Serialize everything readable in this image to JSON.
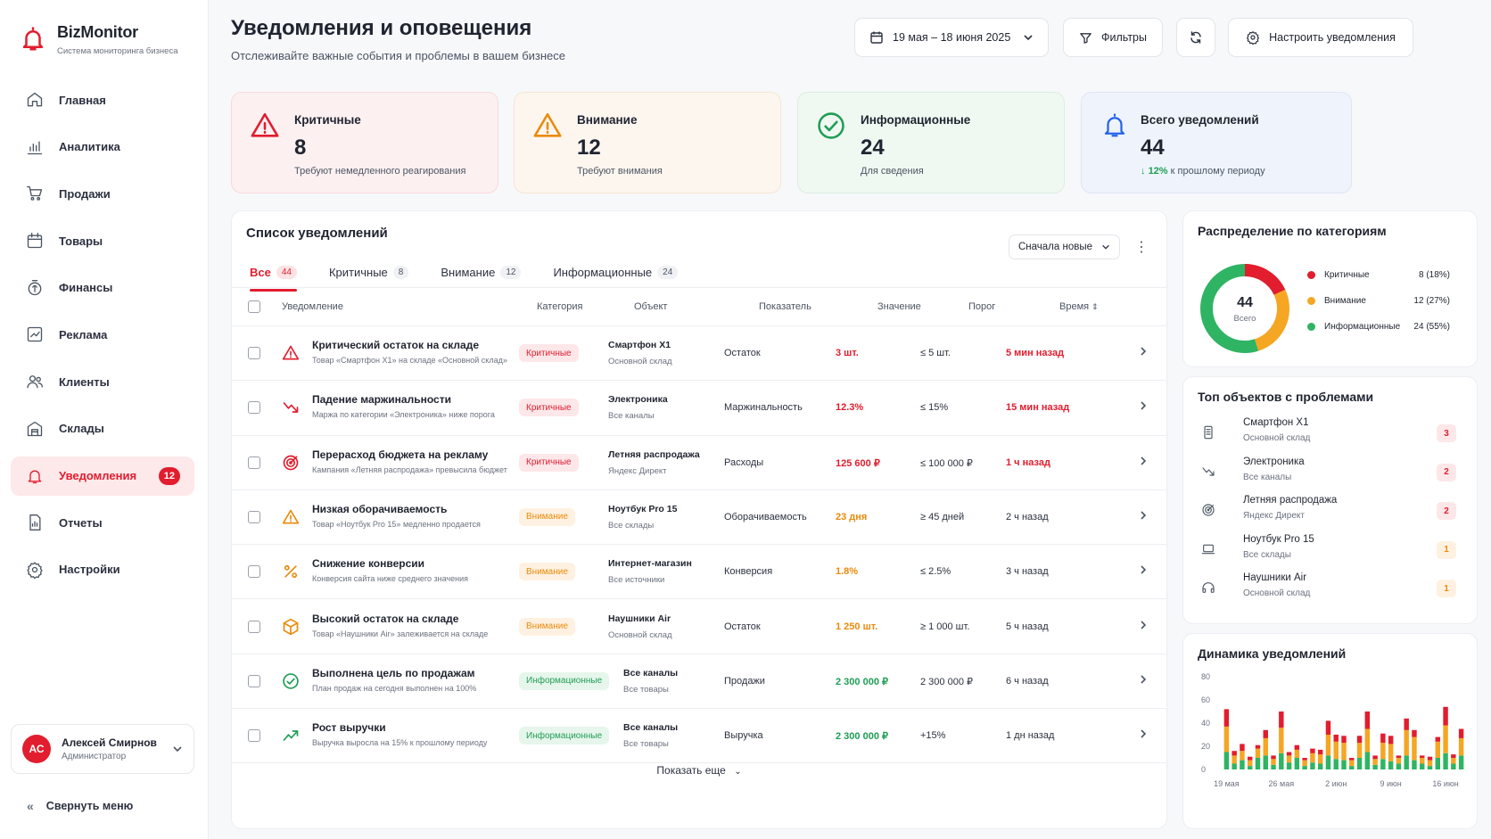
{
  "brand": {
    "name": "BizMonitor",
    "subtitle": "Система мониторинга бизнеса"
  },
  "nav": [
    {
      "label": "Главная",
      "icon": "home-icon"
    },
    {
      "label": "Аналитика",
      "icon": "analytics-icon"
    },
    {
      "label": "Продажи",
      "icon": "cart-icon"
    },
    {
      "label": "Товары",
      "icon": "box-icon"
    },
    {
      "label": "Финансы",
      "icon": "finance-icon"
    },
    {
      "label": "Реклама",
      "icon": "ads-icon"
    },
    {
      "label": "Клиенты",
      "icon": "users-icon"
    },
    {
      "label": "Склады",
      "icon": "warehouse-icon"
    },
    {
      "label": "Уведомления",
      "icon": "bell-icon",
      "badge": "12",
      "active": true
    },
    {
      "label": "Отчеты",
      "icon": "report-icon"
    },
    {
      "label": "Настройки",
      "icon": "settings-icon"
    }
  ],
  "user": {
    "initials": "АС",
    "name": "Алексей Смирнов",
    "role": "Администратор"
  },
  "collapse_label": "Свернуть меню",
  "header": {
    "title": "Уведомления и оповещения",
    "subtitle": "Отслеживайте важные события и проблемы в вашем бизнесе",
    "date_range": "19 мая – 18 июня 2025",
    "filters_label": "Фильтры",
    "settings_label": "Настроить уведомления"
  },
  "stats": [
    {
      "title": "Критичные",
      "value": "8",
      "sub": "Требуют немедленного реагирования",
      "color": "#e11d2e"
    },
    {
      "title": "Внимание",
      "value": "12",
      "sub": "Требуют внимания",
      "color": "#ea8a0a"
    },
    {
      "title": "Информационные",
      "value": "24",
      "sub": "Для сведения",
      "color": "#1f9d55"
    },
    {
      "title": "Всего уведомлений",
      "value": "44",
      "sub_pct": "12%",
      "sub": "к прошлому периоду",
      "color": "#2563eb"
    }
  ],
  "list": {
    "title": "Список уведомлений",
    "sort_label": "Сначала новые",
    "tabs": [
      {
        "label": "Все",
        "count": "44"
      },
      {
        "label": "Критичные",
        "count": "8"
      },
      {
        "label": "Внимание",
        "count": "12"
      },
      {
        "label": "Информационные",
        "count": "24"
      }
    ],
    "columns": [
      "Уведомление",
      "Категория",
      "Объект",
      "Показатель",
      "Значение",
      "Порог",
      "Время"
    ],
    "rows": [
      {
        "level": "crit",
        "icon": "warning-icon",
        "title": "Критический остаток на складе",
        "desc": "Товар «Смартфон X1» на складе «Основной склад»",
        "category": "Критичные",
        "object": "Смартфон X1",
        "object_sub": "Основной склад",
        "metric": "Остаток",
        "value": "3 шт.",
        "threshold": "≤ 5 шт.",
        "time": "5 мин назад",
        "time_hl": true
      },
      {
        "level": "crit",
        "icon": "trend-down-icon",
        "title": "Падение маржинальности",
        "desc": "Маржа по категории «Электроника» ниже порога",
        "category": "Критичные",
        "object": "Электроника",
        "object_sub": "Все каналы",
        "metric": "Маржинальность",
        "value": "12.3%",
        "threshold": "≤ 15%",
        "time": "15 мин назад",
        "time_hl": true
      },
      {
        "level": "crit",
        "icon": "target-icon",
        "title": "Перерасход бюджета на рекламу",
        "desc": "Кампания «Летняя распродажа» превысила бюджет",
        "category": "Критичные",
        "object": "Летняя распродажа",
        "object_sub": "Яндекс Директ",
        "metric": "Расходы",
        "value": "125 600 ₽",
        "threshold": "≤ 100 000 ₽",
        "time": "1 ч назад",
        "time_hl": true
      },
      {
        "level": "warn",
        "icon": "warning-icon",
        "title": "Низкая оборачиваемость",
        "desc": "Товар «Ноутбук Pro 15» медленно продается",
        "category": "Внимание",
        "object": "Ноутбук Pro 15",
        "object_sub": "Все склады",
        "metric": "Оборачиваемость",
        "value": "23 дня",
        "threshold": "≥ 45 дней",
        "time": "2 ч назад",
        "time_hl": false
      },
      {
        "level": "warn",
        "icon": "percent-icon",
        "title": "Снижение конверсии",
        "desc": "Конверсия сайта ниже среднего значения",
        "category": "Внимание",
        "object": "Интернет-магазин",
        "object_sub": "Все источники",
        "metric": "Конверсия",
        "value": "1.8%",
        "threshold": "≤ 2.5%",
        "time": "3 ч назад",
        "time_hl": false
      },
      {
        "level": "warn",
        "icon": "cube-icon",
        "title": "Высокий остаток на складе",
        "desc": "Товар «Наушники Air» залеживается на складе",
        "category": "Внимание",
        "object": "Наушники Air",
        "object_sub": "Основной склад",
        "metric": "Остаток",
        "value": "1 250 шт.",
        "threshold": "≥ 1 000 шт.",
        "time": "5 ч назад",
        "time_hl": false
      },
      {
        "level": "info",
        "icon": "check-circle-icon",
        "title": "Выполнена цель по продажам",
        "desc": "План продаж на сегодня выполнен на 100%",
        "category": "Информационные",
        "object": "Все каналы",
        "object_sub": "Все товары",
        "metric": "Продажи",
        "value": "2 300 000 ₽",
        "threshold": "2 300 000 ₽",
        "time": "6 ч назад",
        "time_hl": false
      },
      {
        "level": "info",
        "icon": "trend-up-icon",
        "title": "Рост выручки",
        "desc": "Выручка выросла на 15% к прошлому периоду",
        "category": "Информационные",
        "object": "Все каналы",
        "object_sub": "Все товары",
        "metric": "Выручка",
        "value": "2 300 000 ₽",
        "threshold": "+15%",
        "time": "1 дн назад",
        "time_hl": false
      }
    ],
    "show_more": "Показать еще"
  },
  "distribution": {
    "title": "Распределение по категориям",
    "total": "44",
    "total_label": "Всего",
    "items": [
      {
        "label": "Критичные",
        "value": "8 (18%)",
        "share": 0.18,
        "color": "#e11d2e"
      },
      {
        "label": "Внимание",
        "value": "12 (27%)",
        "share": 0.27,
        "color": "#f5a623"
      },
      {
        "label": "Информационные",
        "value": "24 (55%)",
        "share": 0.55,
        "color": "#2fb463"
      }
    ]
  },
  "top_objects": {
    "title": "Топ объектов с проблемами",
    "items": [
      {
        "name": "Смартфон X1",
        "sub": "Основной склад",
        "count": "3",
        "level": "crit",
        "icon": "phone-icon"
      },
      {
        "name": "Электроника",
        "sub": "Все каналы",
        "count": "2",
        "level": "crit",
        "icon": "trend-down-icon"
      },
      {
        "name": "Летняя распродажа",
        "sub": "Яндекс Директ",
        "count": "2",
        "level": "crit",
        "icon": "target-icon"
      },
      {
        "name": "Ноутбук Pro 15",
        "sub": "Все склады",
        "count": "1",
        "level": "warn",
        "icon": "laptop-icon"
      },
      {
        "name": "Наушники Air",
        "sub": "Основной склад",
        "count": "1",
        "level": "warn",
        "icon": "headphones-icon"
      }
    ]
  },
  "chart_data": {
    "type": "bar",
    "title": "Динамика уведомлений",
    "stacked": true,
    "ylim": [
      0,
      80
    ],
    "yticks": [
      "0",
      "20",
      "40",
      "60",
      "80"
    ],
    "xticks": [
      "19 мая",
      "26 мая",
      "2 июн",
      "9 июн",
      "16 июн"
    ],
    "x": [
      "19 мая",
      "20 мая",
      "21 мая",
      "22 мая",
      "23 мая",
      "24 мая",
      "25 мая",
      "26 мая",
      "27 мая",
      "28 мая",
      "29 мая",
      "30 мая",
      "31 мая",
      "1 июн",
      "2 июн",
      "3 июн",
      "4 июн",
      "5 июн",
      "6 июн",
      "7 июн",
      "8 июн",
      "9 июн",
      "10 июн",
      "11 июн",
      "12 июн",
      "13 июн",
      "14 июн",
      "15 июн",
      "16 июн",
      "17 июн",
      "18 июн"
    ],
    "series": [
      {
        "color": "#2fb463",
        "values": [
          15,
          5,
          8,
          3,
          10,
          12,
          4,
          14,
          6,
          10,
          3,
          6,
          5,
          12,
          9,
          8,
          3,
          10,
          15,
          4,
          9,
          7,
          5,
          12,
          8,
          5,
          3,
          10,
          14,
          5,
          12
        ]
      },
      {
        "color": "#f5a623",
        "values": [
          22,
          7,
          8,
          5,
          8,
          15,
          5,
          22,
          6,
          7,
          5,
          8,
          8,
          18,
          15,
          15,
          5,
          13,
          20,
          5,
          14,
          15,
          5,
          22,
          20,
          5,
          5,
          14,
          24,
          5,
          15
        ]
      },
      {
        "color": "#e11d2e",
        "values": [
          15,
          4,
          6,
          3,
          3,
          7,
          3,
          14,
          3,
          4,
          2,
          4,
          4,
          12,
          6,
          6,
          2,
          6,
          15,
          3,
          8,
          7,
          2,
          10,
          6,
          2,
          3,
          4,
          16,
          3,
          8
        ]
      }
    ]
  }
}
